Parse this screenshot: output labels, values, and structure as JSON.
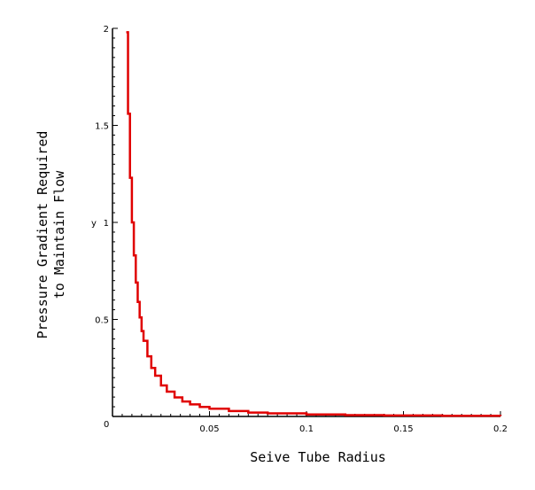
{
  "chart_data": {
    "type": "line",
    "title": "",
    "xlabel": "Seive Tube Radius",
    "ylabel_lines": [
      "Pressure Gradient Required",
      "to Maintain Flow"
    ],
    "y_axis_inline_label": "y",
    "origin_label": "0",
    "xlim": [
      0,
      0.2
    ],
    "ylim": [
      0,
      2
    ],
    "x_ticks": [
      {
        "value": 0.05,
        "label": "0.05"
      },
      {
        "value": 0.1,
        "label": "0.1"
      },
      {
        "value": 0.15,
        "label": "0.15"
      },
      {
        "value": 0.2,
        "label": "0.2"
      }
    ],
    "y_ticks": [
      {
        "value": 0.5,
        "label": "0.5"
      },
      {
        "value": 1,
        "label": "1"
      },
      {
        "value": 1.5,
        "label": "1.5"
      },
      {
        "value": 2,
        "label": "2"
      }
    ],
    "grid": false,
    "series": [
      {
        "color": "#e00000",
        "x": [
          0.0071,
          0.008,
          0.009,
          0.01,
          0.011,
          0.012,
          0.013,
          0.014,
          0.015,
          0.016,
          0.018,
          0.02,
          0.022,
          0.025,
          0.028,
          0.032,
          0.036,
          0.04,
          0.045,
          0.05,
          0.06,
          0.07,
          0.08,
          0.1,
          0.12,
          0.14,
          0.17,
          0.2
        ],
        "y": [
          1.98,
          1.56,
          1.23,
          1.0,
          0.83,
          0.69,
          0.59,
          0.51,
          0.44,
          0.39,
          0.31,
          0.25,
          0.21,
          0.16,
          0.128,
          0.098,
          0.077,
          0.0625,
          0.049,
          0.04,
          0.028,
          0.02,
          0.016,
          0.01,
          0.007,
          0.005,
          0.0035,
          0.0025
        ]
      }
    ]
  }
}
